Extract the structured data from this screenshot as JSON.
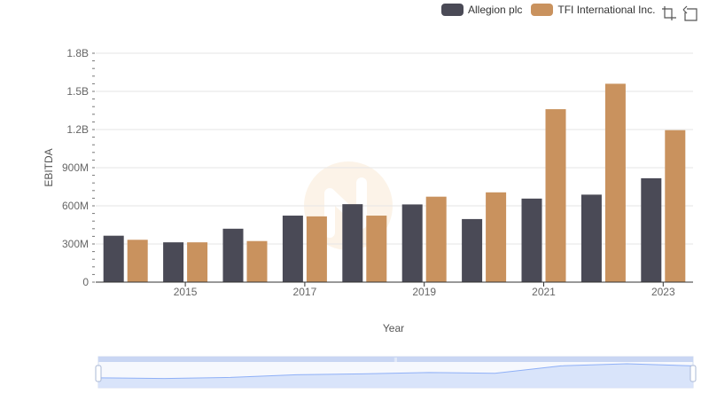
{
  "legend": {
    "items": [
      {
        "label": "Allegion plc",
        "color": "#4a4a56"
      },
      {
        "label": "TFI International Inc.",
        "color": "#c9925e"
      }
    ]
  },
  "toolbox": {
    "icons": [
      "zoom-icon",
      "restore-icon"
    ]
  },
  "chart_data": {
    "type": "bar",
    "x": [
      2014,
      2015,
      2016,
      2017,
      2018,
      2019,
      2020,
      2021,
      2022,
      2023
    ],
    "x_tick_labels": [
      "2015",
      "2017",
      "2019",
      "2021",
      "2023"
    ],
    "ylabel": "EBITDA",
    "xlabel": "Year",
    "ylim": [
      0,
      1800000000
    ],
    "y_tick_labels": [
      "0",
      "300M",
      "600M",
      "900M",
      "1.2B",
      "1.5B",
      "1.8B"
    ],
    "grid": true,
    "legend_position": "top-right",
    "series": [
      {
        "name": "Allegion plc",
        "color": "#4a4a56",
        "values": [
          365000000,
          313000000,
          420000000,
          523000000,
          613000000,
          611000000,
          496000000,
          657000000,
          688000000,
          817000000
        ]
      },
      {
        "name": "TFI International Inc.",
        "color": "#c9925e",
        "values": [
          333000000,
          313000000,
          323000000,
          517000000,
          523000000,
          672000000,
          706000000,
          1360000000,
          1560000000,
          1195000000
        ]
      }
    ],
    "data_zoom": {
      "start_percent": 0,
      "end_percent": 100,
      "fill_color": "#d6e1f9",
      "line_color": "#8fb0f7"
    }
  }
}
